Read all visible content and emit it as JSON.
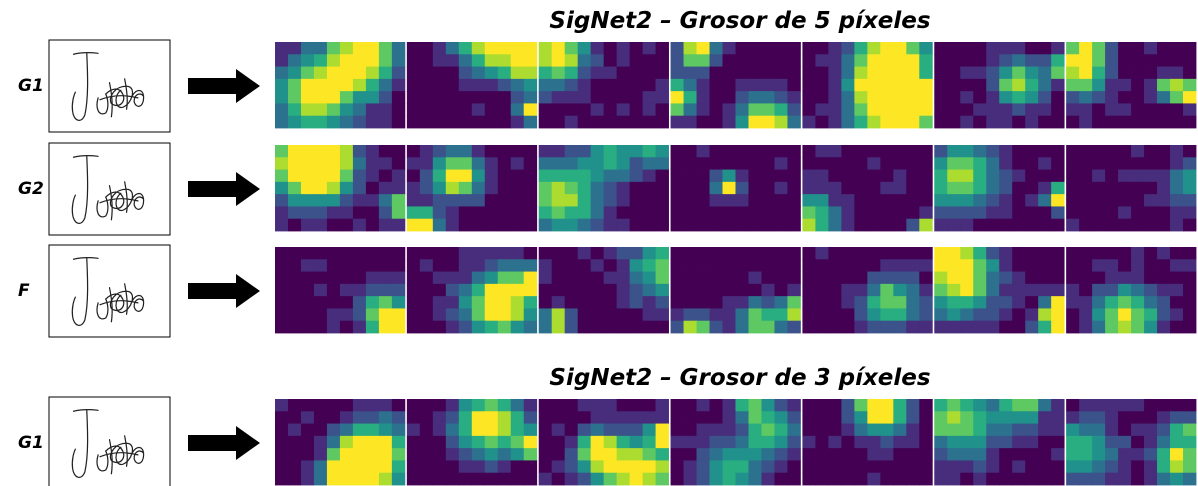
{
  "sections": [
    {
      "title": "SigNet2 – Grosor de 5 píxeles",
      "rows": [
        "G1",
        "G2",
        "F"
      ]
    },
    {
      "title": "SigNet2 – Grosor de 3 píxeles",
      "rows": [
        "G1"
      ]
    }
  ]
}
